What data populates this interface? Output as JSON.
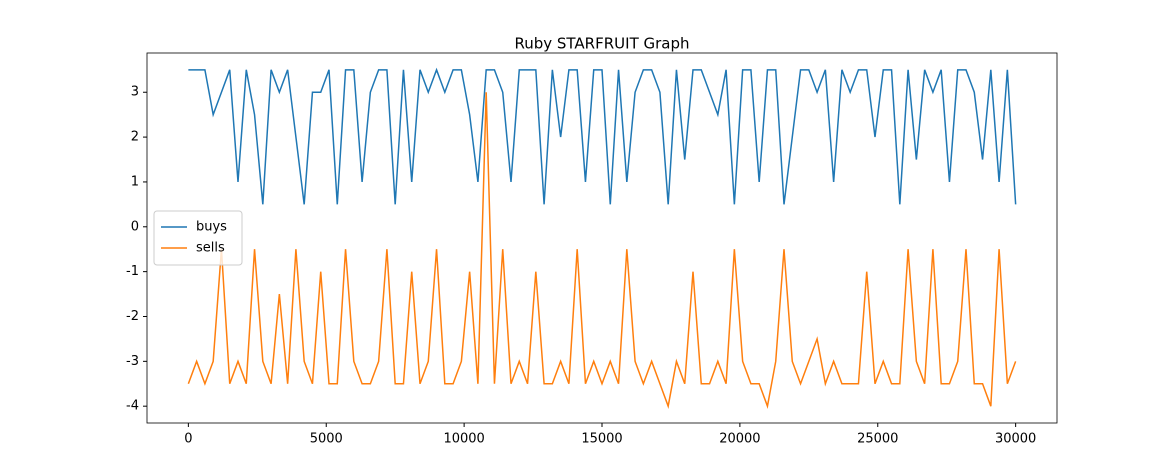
{
  "chart_data": {
    "type": "line",
    "title": "Ruby STARFRUIT Graph",
    "x": [
      0,
      300,
      600,
      900,
      1200,
      1500,
      1800,
      2100,
      2400,
      2700,
      3000,
      3300,
      3600,
      3900,
      4200,
      4500,
      4800,
      5100,
      5400,
      5700,
      6000,
      6300,
      6600,
      6900,
      7200,
      7500,
      7800,
      8100,
      8400,
      8700,
      9000,
      9300,
      9600,
      9900,
      10200,
      10500,
      10800,
      11100,
      11400,
      11700,
      12000,
      12300,
      12600,
      12900,
      13200,
      13500,
      13800,
      14100,
      14400,
      14700,
      15000,
      15300,
      15600,
      15900,
      16200,
      16500,
      16800,
      17100,
      17400,
      17700,
      18000,
      18300,
      18600,
      18900,
      19200,
      19500,
      19800,
      20100,
      20400,
      20700,
      21000,
      21300,
      21600,
      21900,
      22200,
      22500,
      22800,
      23100,
      23400,
      23700,
      24000,
      24300,
      24600,
      24900,
      25200,
      25500,
      25800,
      26100,
      26400,
      26700,
      27000,
      27300,
      27600,
      27900,
      28200,
      28500,
      28800,
      29100,
      29400,
      29700,
      30000
    ],
    "series": [
      {
        "name": "buys",
        "color": "#1f77b4",
        "values": [
          3.5,
          3.5,
          3.5,
          2.5,
          3,
          3.5,
          1,
          3.5,
          2.5,
          0.5,
          3.5,
          3,
          3.5,
          2,
          0.5,
          3,
          3,
          3.5,
          0.5,
          3.5,
          3.5,
          1,
          3,
          3.5,
          3.5,
          0.5,
          3.5,
          1,
          3.5,
          3,
          3.5,
          3,
          3.5,
          3.5,
          2.5,
          1,
          3.5,
          3.5,
          3,
          1,
          3.5,
          3.5,
          3.5,
          0.5,
          3.5,
          2,
          3.5,
          3.5,
          1,
          3.5,
          3.5,
          0.5,
          3.5,
          1,
          3,
          3.5,
          3.5,
          3,
          0.5,
          3.5,
          1.5,
          3.5,
          3.5,
          3,
          2.5,
          3.5,
          0.5,
          3.5,
          3.5,
          1,
          3.5,
          3.5,
          0.5,
          2,
          3.5,
          3.5,
          3,
          3.5,
          1,
          3.5,
          3,
          3.5,
          3.5,
          2,
          3.5,
          3.5,
          0.5,
          3.5,
          1.5,
          3.5,
          3,
          3.5,
          1,
          3.5,
          3.5,
          3,
          1.5,
          3.5,
          1,
          3.5,
          0.5
        ]
      },
      {
        "name": "sells",
        "color": "#ff7f0e",
        "values": [
          -3.5,
          -3,
          -3.5,
          -3,
          -0.5,
          -3.5,
          -3,
          -3.5,
          -0.5,
          -3,
          -3.5,
          -1.5,
          -3.5,
          -0.5,
          -3,
          -3.5,
          -1,
          -3.5,
          -3.5,
          -0.5,
          -3,
          -3.5,
          -3.5,
          -3,
          -0.5,
          -3.5,
          -3.5,
          -1,
          -3.5,
          -3,
          -0.5,
          -3.5,
          -3.5,
          -3,
          -1,
          -3.5,
          3,
          -3.5,
          -0.5,
          -3.5,
          -3,
          -3.5,
          -1,
          -3.5,
          -3.5,
          -3,
          -3.5,
          -0.5,
          -3.5,
          -3,
          -3.5,
          -3,
          -3.5,
          -0.5,
          -3,
          -3.5,
          -3,
          -3.5,
          -4,
          -3,
          -3.5,
          -1,
          -3.5,
          -3.5,
          -3,
          -3.5,
          -0.5,
          -3,
          -3.5,
          -3.5,
          -4,
          -3,
          -0.5,
          -3,
          -3.5,
          -3,
          -2.5,
          -3.5,
          -3,
          -3.5,
          -3.5,
          -3.5,
          -1,
          -3.5,
          -3,
          -3.5,
          -3.5,
          -0.5,
          -3,
          -3.5,
          -0.5,
          -3.5,
          -3.5,
          -3,
          -0.5,
          -3.5,
          -3.5,
          -4,
          -0.5,
          -3.5,
          -3
        ]
      }
    ],
    "xlim": [
      -1500,
      31500
    ],
    "xticks": [
      0,
      5000,
      10000,
      15000,
      20000,
      25000,
      30000
    ],
    "ylim": [
      -4.375,
      3.875
    ],
    "yticks": [
      -4,
      -3,
      -2,
      -1,
      0,
      1,
      2,
      3
    ],
    "legend": "center left"
  }
}
